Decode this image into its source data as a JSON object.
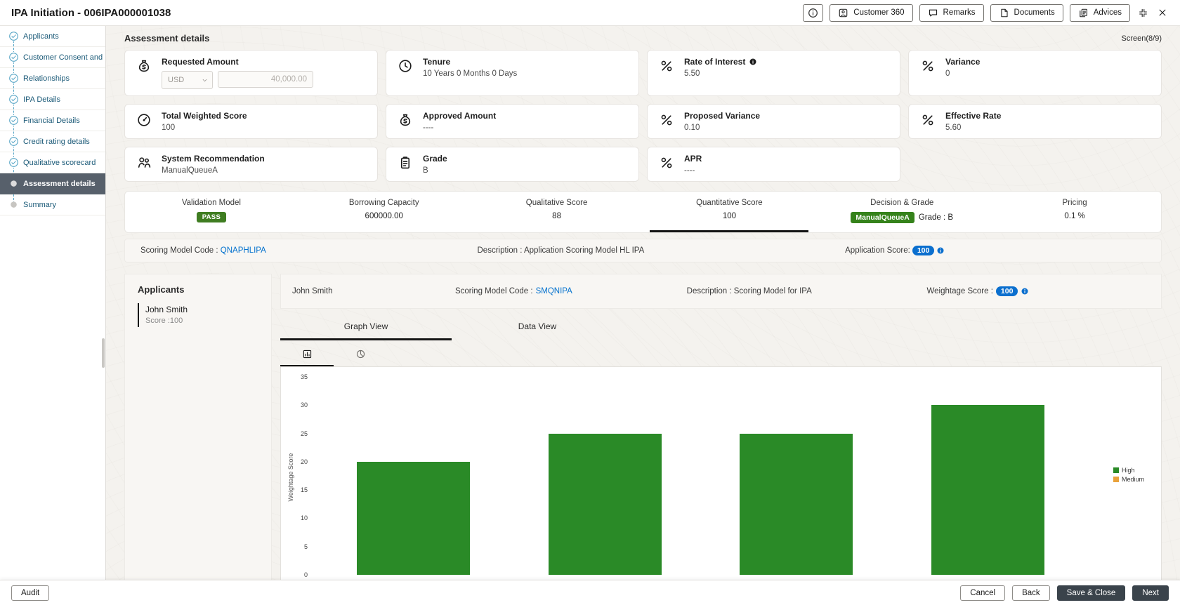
{
  "window": {
    "title": "IPA Initiation - 006IPA000001038",
    "toolbar_buttons": [
      {
        "label": "",
        "icon": "info-icon",
        "name": "info-button"
      },
      {
        "label": "Customer 360",
        "icon": "customer-360-icon",
        "name": "customer-360-button"
      },
      {
        "label": "Remarks",
        "icon": "remarks-icon",
        "name": "remarks-button"
      },
      {
        "label": "Documents",
        "icon": "documents-icon",
        "name": "documents-button"
      },
      {
        "label": "Advices",
        "icon": "advices-icon",
        "name": "advices-button"
      }
    ]
  },
  "sidebar": {
    "items": [
      {
        "label": "Applicants",
        "state": "done"
      },
      {
        "label": "Customer Consent and ...",
        "state": "done"
      },
      {
        "label": "Relationships",
        "state": "done"
      },
      {
        "label": "IPA Details",
        "state": "done"
      },
      {
        "label": "Financial Details",
        "state": "done"
      },
      {
        "label": "Credit rating details",
        "state": "done"
      },
      {
        "label": "Qualitative scorecard",
        "state": "done"
      },
      {
        "label": "Assessment details",
        "state": "active"
      },
      {
        "label": "Summary",
        "state": "pending"
      }
    ]
  },
  "header": {
    "title": "Assessment details",
    "screen_indicator": "Screen(8/9)"
  },
  "cards": [
    {
      "icon": "money-bag-icon",
      "label": "Requested Amount",
      "type": "currency-input",
      "currency": "USD",
      "amount": "40,000.00"
    },
    {
      "icon": "clock-icon",
      "label": "Tenure",
      "value": "10 Years 0 Months 0 Days"
    },
    {
      "icon": "percent-icon",
      "label": "Rate of Interest",
      "value": "5.50",
      "info": true
    },
    {
      "icon": "percent-icon",
      "label": "Variance",
      "value": "0"
    },
    {
      "icon": "gauge-icon",
      "label": "Total Weighted Score",
      "value": "100"
    },
    {
      "icon": "money-bag-icon",
      "label": "Approved Amount",
      "value": "----"
    },
    {
      "icon": "percent-icon",
      "label": "Proposed Variance",
      "value": "0.10"
    },
    {
      "icon": "percent-icon",
      "label": "Effective Rate",
      "value": "5.60"
    },
    {
      "icon": "people-icon",
      "label": "System Recommendation",
      "value": "ManualQueueA"
    },
    {
      "icon": "clipboard-icon",
      "label": "Grade",
      "value": "B"
    },
    {
      "icon": "percent-icon",
      "label": "APR",
      "value": "----"
    }
  ],
  "summary_tabs": [
    {
      "label": "Validation Model",
      "badge": "PASS",
      "badge_style": "pass",
      "active": false
    },
    {
      "label": "Borrowing Capacity",
      "value": "600000.00",
      "active": false
    },
    {
      "label": "Qualitative Score",
      "value": "88",
      "active": false
    },
    {
      "label": "Quantitative Score",
      "value": "100",
      "active": true
    },
    {
      "label": "Decision & Grade",
      "badge": "ManualQueueA",
      "badge_style": "decision",
      "suffix": "Grade : B",
      "active": false
    },
    {
      "label": "Pricing",
      "value": "0.1 %",
      "active": false
    }
  ],
  "scoring_row": {
    "model_code_label": "Scoring Model Code :",
    "model_code": "QNAPHLIPA",
    "description": "Description : Application Scoring Model HL IPA",
    "score_label": "Application Score:",
    "score": "100"
  },
  "applicants_panel": {
    "title": "Applicants",
    "items": [
      {
        "name": "John Smith",
        "score_label": "Score :100"
      }
    ]
  },
  "applicant_detail": {
    "name": "John Smith",
    "model_code_label": "Scoring Model Code :",
    "model_code": "SMQNIPA",
    "description": "Description : Scoring Model for IPA",
    "score_label": "Weightage Score :",
    "score": "100"
  },
  "view_tabs": [
    {
      "label": "Graph View",
      "active": true
    },
    {
      "label": "Data View",
      "active": false
    }
  ],
  "chart_tabs": [
    {
      "icon": "bar-chart-icon",
      "active": true
    },
    {
      "icon": "donut-chart-icon",
      "active": false
    }
  ],
  "chart_data": {
    "type": "bar",
    "title": "",
    "xlabel": "",
    "ylabel": "Weightage Score",
    "ylim": [
      0,
      35
    ],
    "yticks": [
      0,
      5,
      10,
      15,
      20,
      25,
      30,
      35
    ],
    "grid": false,
    "legend_position": "right",
    "categories": [
      "",
      "",
      "",
      ""
    ],
    "series": [
      {
        "name": "High",
        "color": "#2a8a27",
        "values": [
          20,
          25,
          25,
          30
        ]
      },
      {
        "name": "Medium",
        "color": "#e9a23b",
        "values": []
      }
    ]
  },
  "footer": {
    "audit_label": "Audit",
    "cancel_label": "Cancel",
    "back_label": "Back",
    "save_close_label": "Save & Close",
    "next_label": "Next"
  },
  "colors": {
    "accent_blue": "#0572ce",
    "badge_pass_green": "#3f7d21",
    "badge_decision_green": "#35821b",
    "bar_green": "#2a8a27",
    "legend_orange": "#e9a23b",
    "active_step_bg": "#57606b"
  }
}
